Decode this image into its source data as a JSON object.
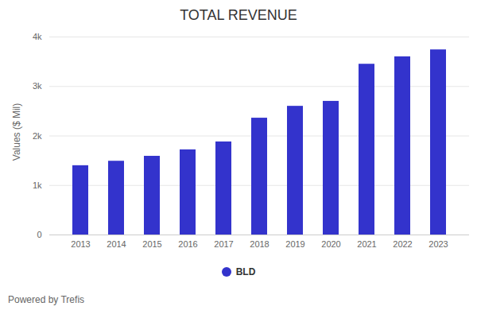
{
  "chart_data": {
    "type": "bar",
    "title": "TOTAL REVENUE",
    "y_label": "Values ($ Mil)",
    "caption": "Powered by Trefis",
    "categories": [
      "2013",
      "2014",
      "2015",
      "2016",
      "2017",
      "2018",
      "2019",
      "2020",
      "2021",
      "2022",
      "2023"
    ],
    "series": [
      {
        "name": "BLD",
        "color": "#3333cc",
        "values": [
          1400,
          1490,
          1590,
          1720,
          1880,
          2360,
          2600,
          2700,
          3450,
          3600,
          3740
        ]
      }
    ],
    "ylim": [
      0,
      4000
    ],
    "yticks": [
      0,
      {
        "value": 1000,
        "label": "1k"
      },
      {
        "value": 2000,
        "label": "2k"
      },
      {
        "value": 3000,
        "label": "3k"
      },
      {
        "value": 4000,
        "label": "4k"
      }
    ],
    "grid": true,
    "legend": "bottom"
  }
}
